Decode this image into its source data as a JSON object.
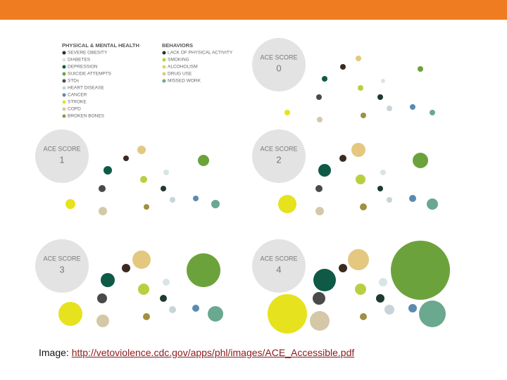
{
  "legend": {
    "physical_mental_health": {
      "title": "PHYSICAL & MENTAL HEALTH",
      "items": [
        "SEVERE OBESITY",
        "DIABETES",
        "DEPRESSION",
        "SUICIDE ATTEMPTS",
        "STDs",
        "HEART DISEASE",
        "CANCER",
        "STROKE",
        "COPD",
        "BROKEN BONES"
      ]
    },
    "behaviors": {
      "title": "BEHAVIORS",
      "items": [
        "LACK OF PHYSICAL ACTIVITY",
        "SMOKING",
        "ALCOHOLISM",
        "DRUG USE",
        "MISSED WORK"
      ]
    }
  },
  "panels": [
    {
      "label": "ACE SCORE",
      "score": "0"
    },
    {
      "label": "ACE SCORE",
      "score": "1"
    },
    {
      "label": "ACE SCORE",
      "score": "2"
    },
    {
      "label": "ACE SCORE",
      "score": "3"
    },
    {
      "label": "ACE SCORE",
      "score": "4"
    }
  ],
  "caption": {
    "prefix": "Image:",
    "link": "http://vetoviolence.cdc.gov/apps/phl/images/ACE_Accessible.pdf"
  }
}
